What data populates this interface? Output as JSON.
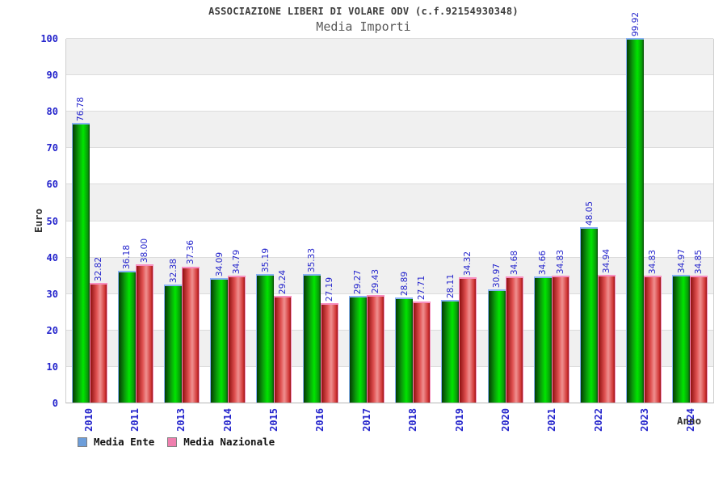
{
  "chart": {
    "title": "ASSOCIAZIONE LIBERI DI VOLARE ODV (c.f.92154930348)",
    "subtitle": "Media Importi",
    "ylabel": "Euro",
    "xlabel": "Anno"
  },
  "legend": [
    {
      "label": "Media Ente",
      "swatch_color": "#6d9eda"
    },
    {
      "label": "Media Nazionale",
      "swatch_color": "#ef7fae"
    }
  ],
  "colors": {
    "tick_text": "#2424cc",
    "value_label_text": "#2424cc",
    "band_gray": "#f0f0f0",
    "band_white": "#ffffff",
    "bar_green_bright": "#00e600",
    "bar_green_dark": "#043c04",
    "bar_green_cap": "#8ab2f5",
    "bar_red_bright": "#f09090",
    "bar_red_dark": "#8f1010",
    "bar_red_cap": "#f78fc0"
  },
  "chart_data": {
    "type": "bar",
    "title": "ASSOCIAZIONE LIBERI DI VOLARE ODV (c.f.92154930348)",
    "subtitle": "Media Importi",
    "xlabel": "Anno",
    "ylabel": "Euro",
    "ylim": [
      0,
      100
    ],
    "yticks": [
      0,
      10,
      20,
      30,
      40,
      50,
      60,
      70,
      80,
      90,
      100
    ],
    "grid": true,
    "legend_position": "bottom",
    "categories": [
      "2010",
      "2011",
      "2013",
      "2014",
      "2015",
      "2016",
      "2017",
      "2018",
      "2019",
      "2020",
      "2021",
      "2022",
      "2023",
      "2024"
    ],
    "series": [
      {
        "name": "Media Ente",
        "values": [
          76.78,
          36.18,
          32.38,
          34.09,
          35.19,
          35.33,
          29.27,
          28.89,
          28.11,
          30.97,
          34.66,
          48.05,
          99.92,
          34.97
        ]
      },
      {
        "name": "Media Nazionale",
        "values": [
          32.82,
          38.0,
          37.36,
          34.79,
          29.24,
          27.19,
          29.43,
          27.71,
          34.32,
          34.68,
          34.83,
          34.94,
          34.83,
          34.85
        ]
      }
    ]
  }
}
